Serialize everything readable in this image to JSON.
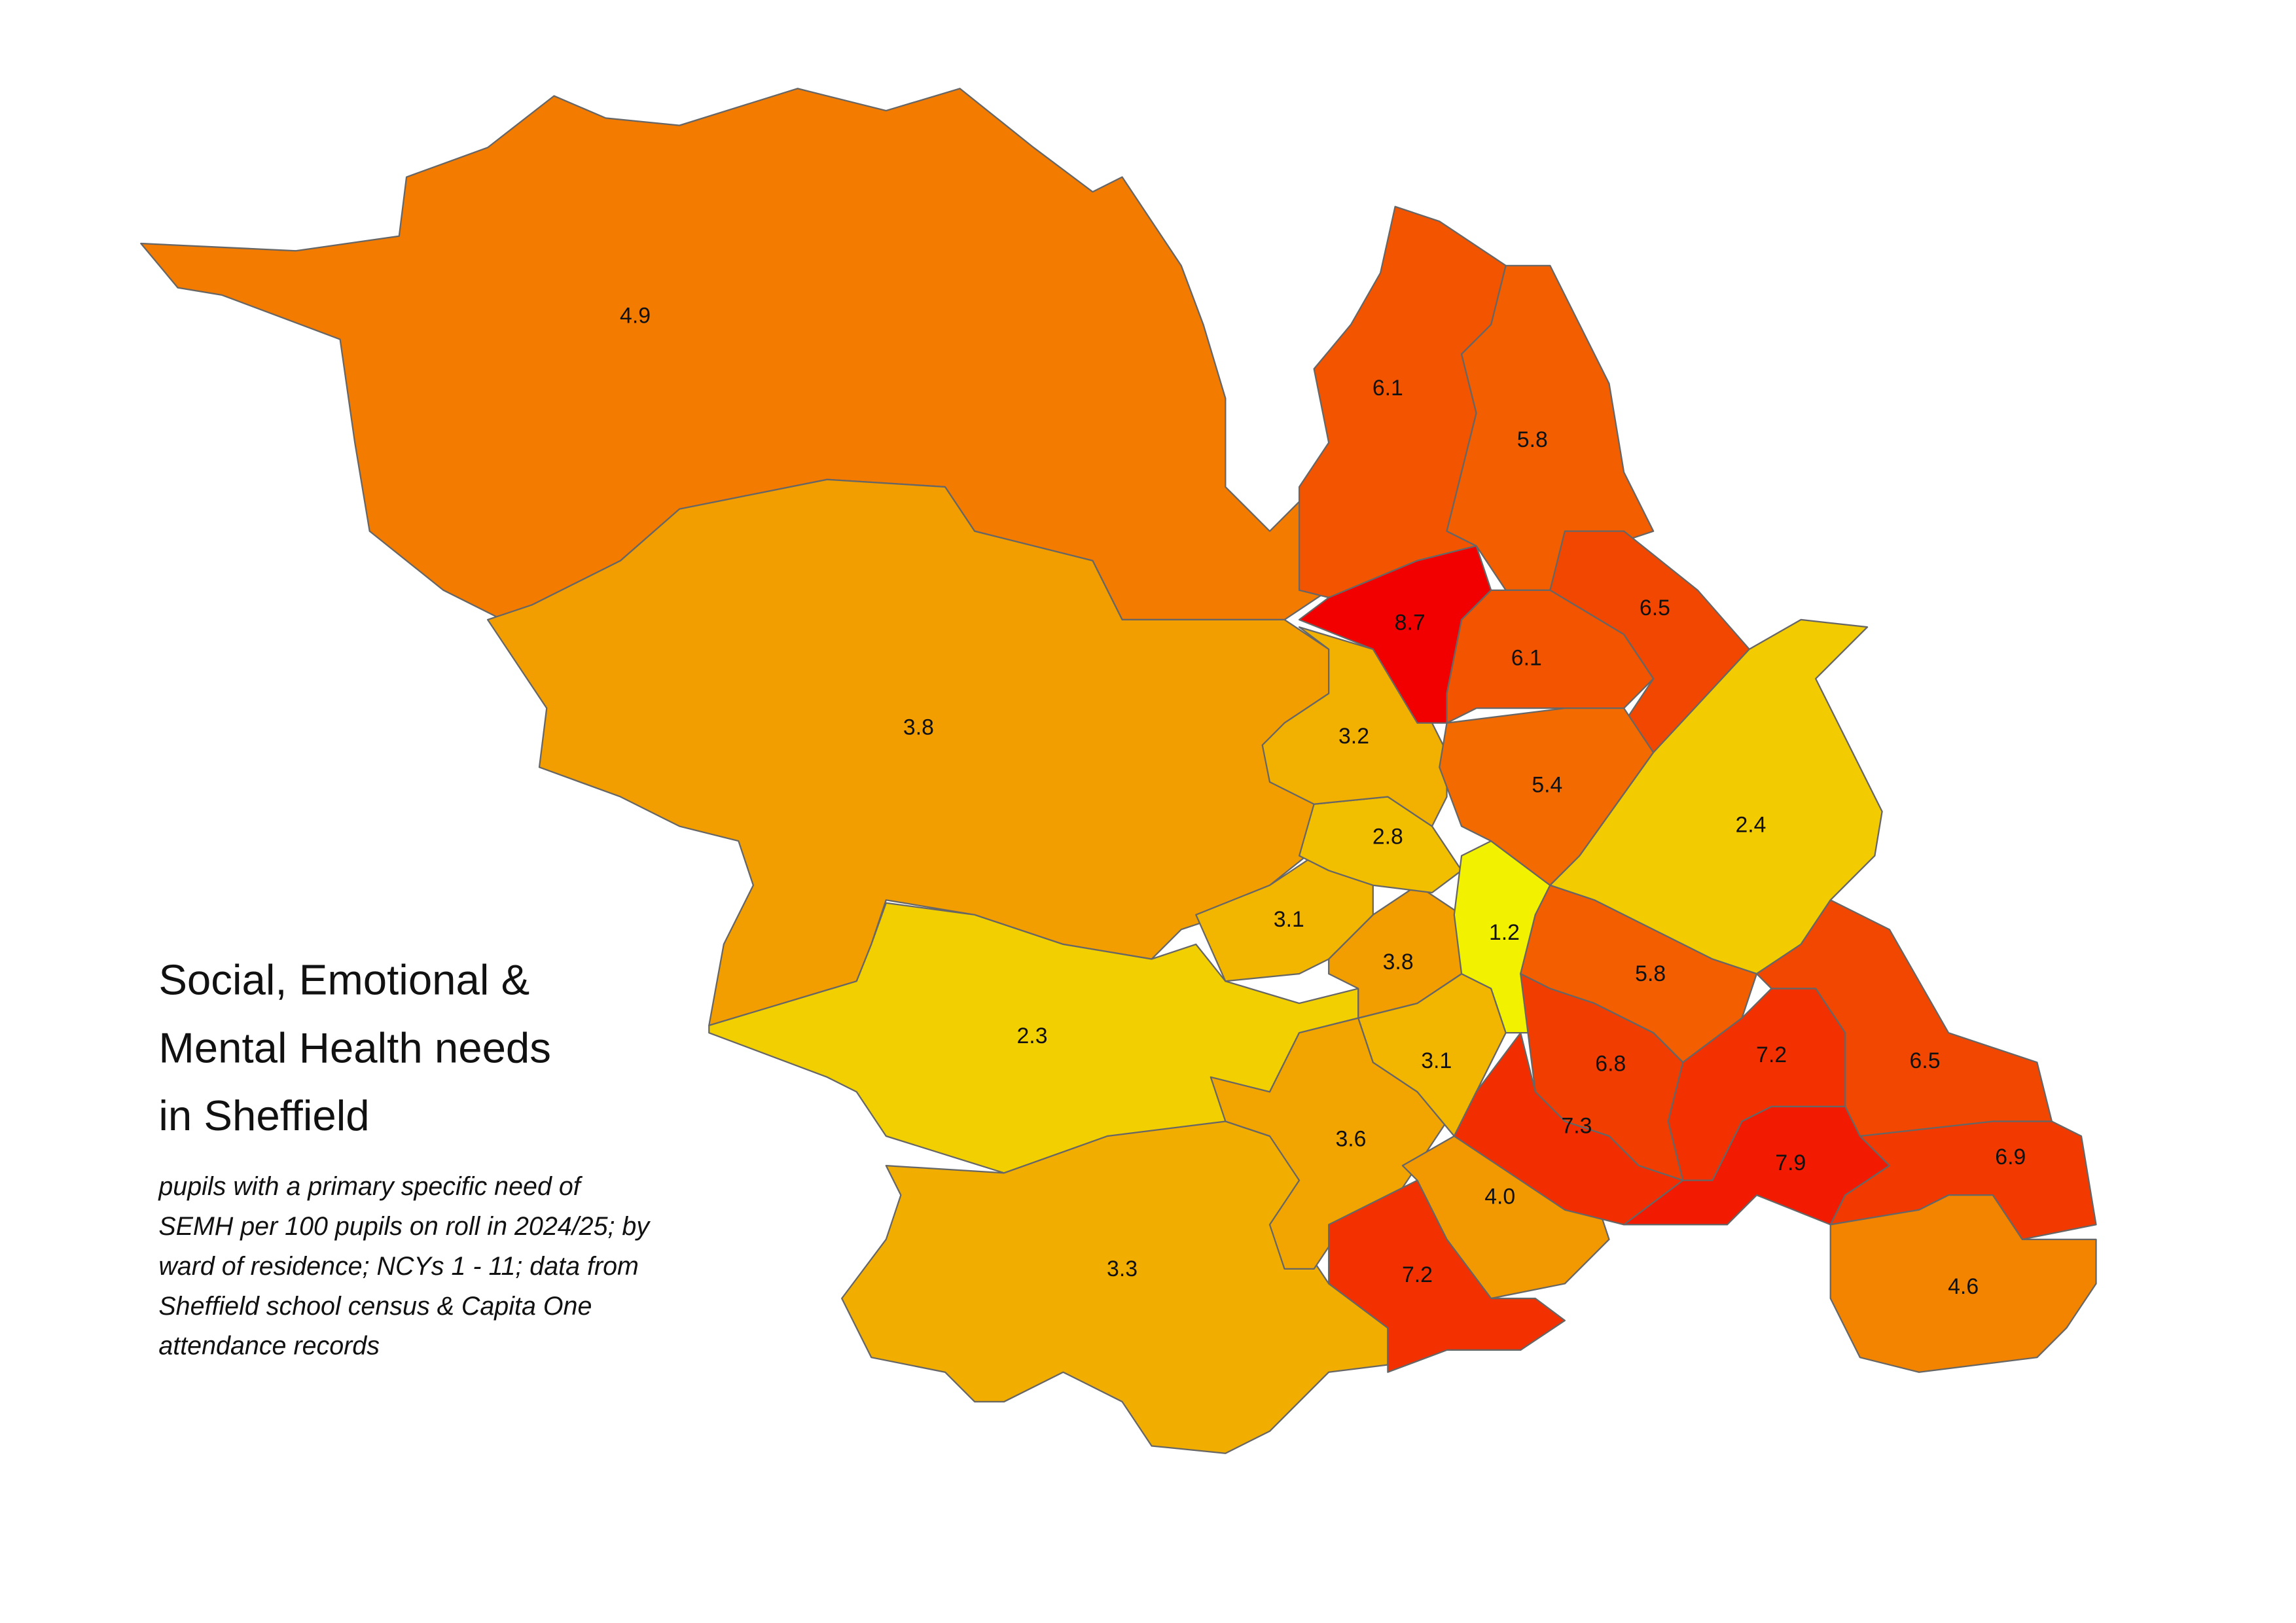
{
  "title": [
    "Social, Emotional &",
    "Mental Health needs",
    "in Sheffield"
  ],
  "subtitle": [
    "pupils with a primary specific need of",
    "SEMH per 100 pupils on roll in 2024/25; by",
    "ward of residence; NCYs 1 - 11; data from",
    "Sheffield school census & Capita One",
    "attendance records"
  ],
  "wards": {
    "values": [
      4.9,
      3.8,
      2.3,
      3.3,
      3.6,
      7.2,
      4.0,
      3.1,
      3.8,
      3.1,
      2.8,
      3.2,
      1.2,
      8.7,
      6.1,
      5.8,
      6.5,
      6.1,
      5.4,
      2.4,
      5.8,
      6.8,
      7.3,
      7.2,
      7.9,
      6.5,
      6.9,
      4.6
    ],
    "value_labels": [
      "4.9",
      "3.8",
      "2.3",
      "3.3",
      "3.6",
      "7.2",
      "4.0",
      "3.1",
      "3.8",
      "3.1",
      "2.8",
      "3.2",
      "1.2",
      "8.7",
      "6.1",
      "5.8",
      "6.5",
      "6.1",
      "5.4",
      "2.4",
      "5.8",
      "6.8",
      "7.3",
      "7.2",
      "7.9",
      "6.5",
      "6.9",
      "4.6"
    ]
  },
  "color_scale": [
    "#f2f200",
    "#f20000"
  ]
}
